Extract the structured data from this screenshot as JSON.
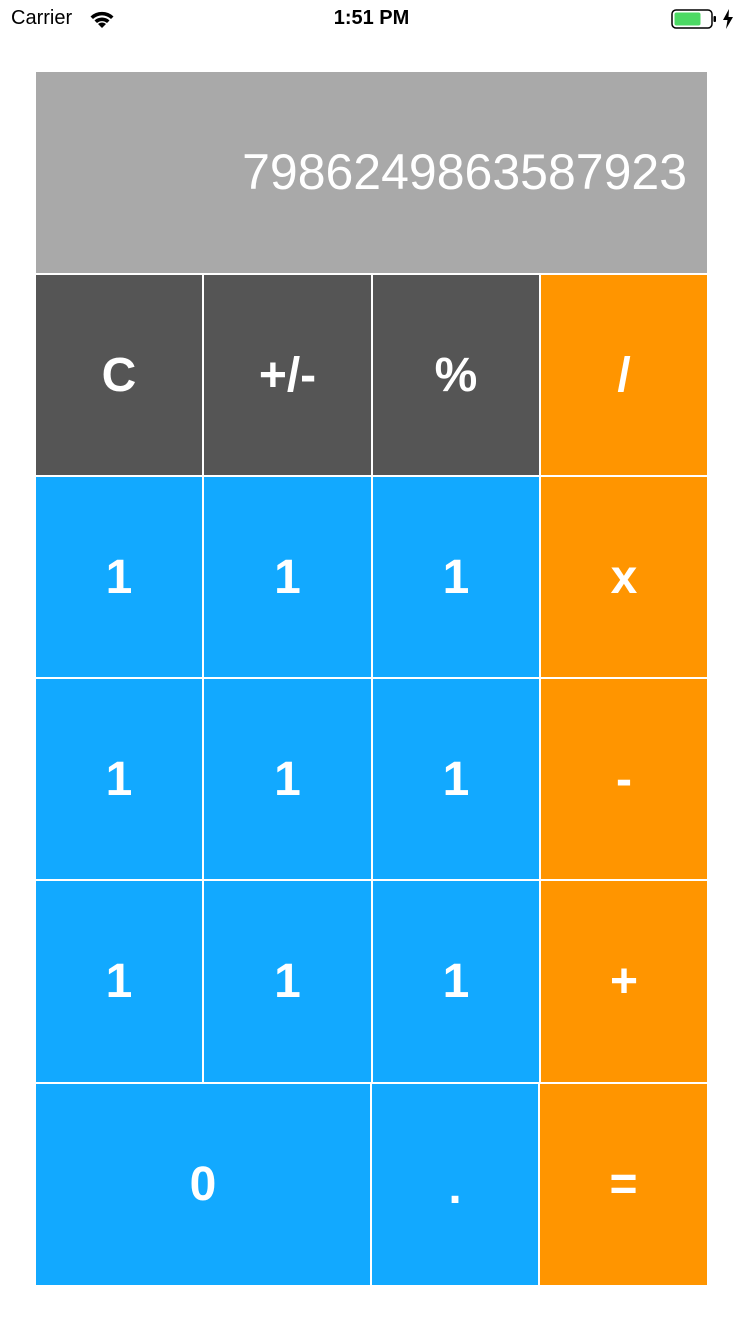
{
  "status_bar": {
    "carrier": "Carrier",
    "time": "1:51 PM",
    "battery_color": "#4cd964"
  },
  "display": {
    "value": "79862498635879​23"
  },
  "keys": {
    "clear": "C",
    "sign": "+/-",
    "percent": "%",
    "divide": "/",
    "multiply": "x",
    "subtract": "-",
    "add": "+",
    "equals": "=",
    "row1": [
      "1",
      "1",
      "1"
    ],
    "row2": [
      "1",
      "1",
      "1"
    ],
    "row3": [
      "1",
      "1",
      "1"
    ],
    "zero": "0",
    "decimal": "."
  },
  "colors": {
    "display_bg": "#a9a9a9",
    "function_key": "#555555",
    "number_key": "#12a9ff",
    "operator_key": "#ff9500"
  }
}
